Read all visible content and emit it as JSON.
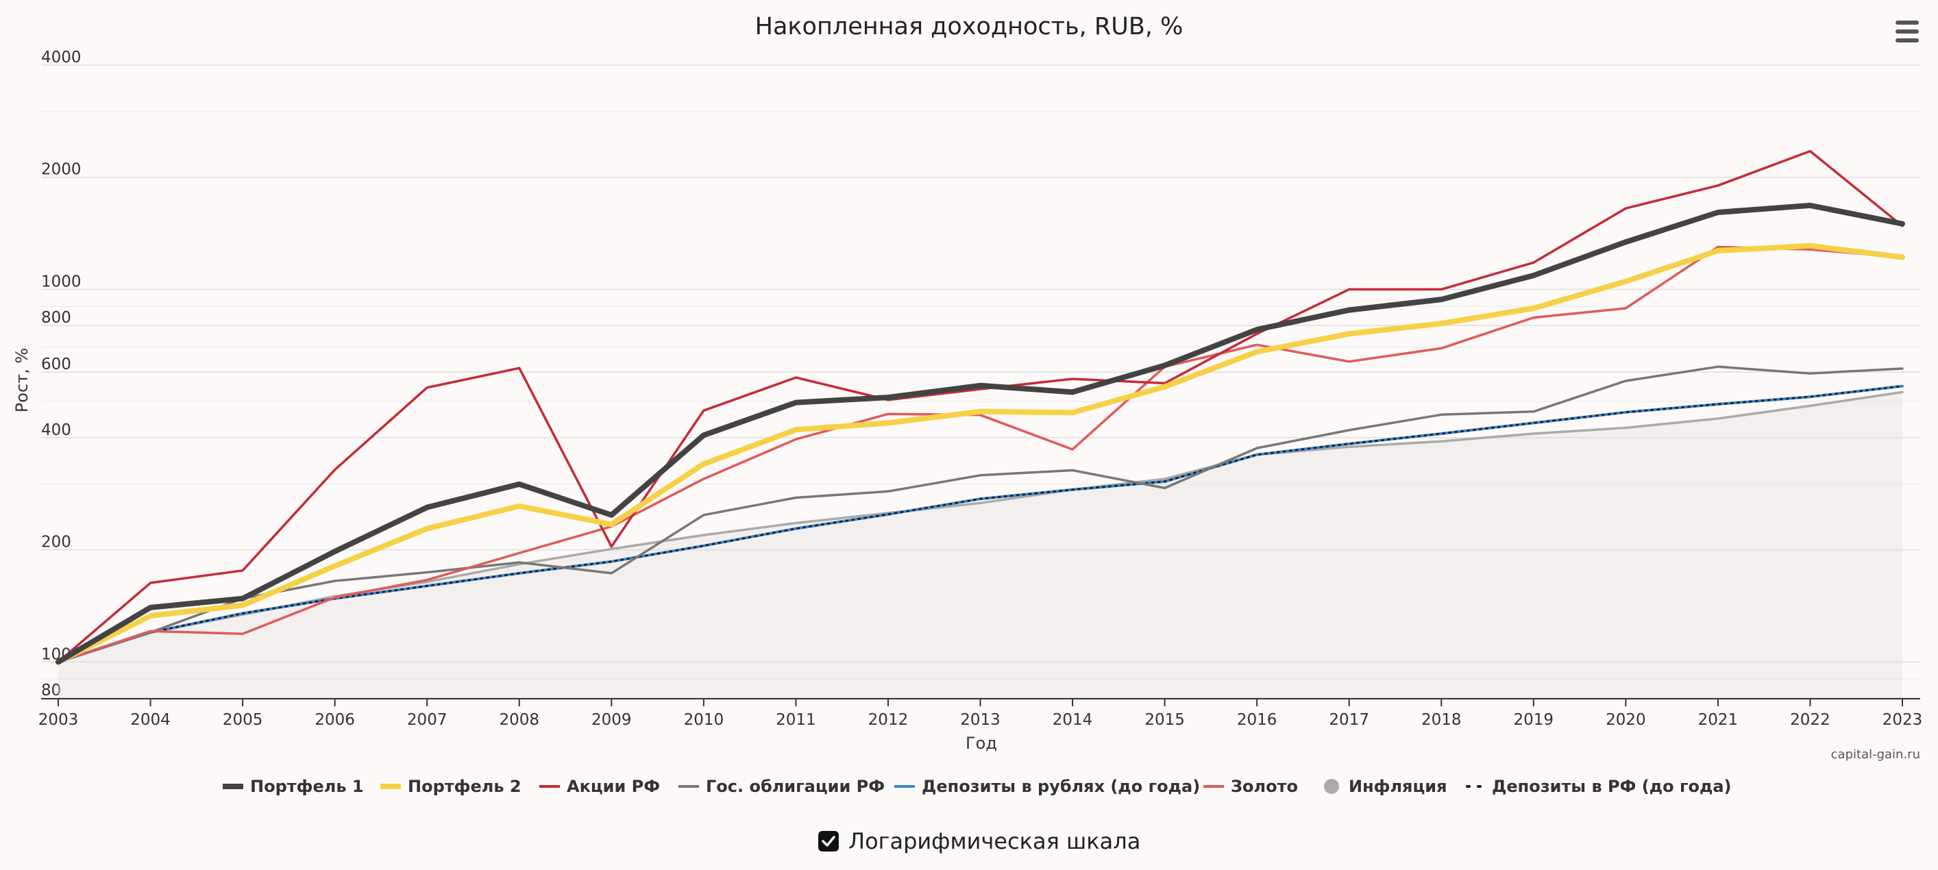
{
  "chart_data": {
    "type": "line",
    "title": "Накопленная доходность, RUB, %",
    "xlabel": "Год",
    "ylabel": "Рост, %",
    "yscale": "log",
    "ylim": [
      80,
      4000
    ],
    "yticks": [
      "4000",
      "2000",
      "1000",
      "800",
      "600",
      "400",
      "200",
      "100",
      "80"
    ],
    "x": [
      "2003",
      "2004",
      "2005",
      "2006",
      "2007",
      "2008",
      "2009",
      "2010",
      "2011",
      "2012",
      "2013",
      "2014",
      "2015",
      "2016",
      "2017",
      "2018",
      "2019",
      "2020",
      "2021",
      "2022",
      "2023"
    ],
    "grid": true,
    "legend_position": "bottom",
    "series": [
      {
        "name": "Портфель 1",
        "color": "#434343",
        "values": [
          100,
          140,
          148,
          198,
          260,
          300,
          248,
          406,
          497,
          513,
          552,
          530,
          625,
          780,
          880,
          940,
          1090,
          1340,
          1610,
          1680,
          1500
        ]
      },
      {
        "name": "Портфель 2",
        "color": "#f6d147",
        "values": [
          100,
          133,
          142,
          181,
          228,
          262,
          234,
          340,
          420,
          438,
          470,
          467,
          548,
          680,
          760,
          810,
          890,
          1050,
          1270,
          1310,
          1220
        ]
      },
      {
        "name": "Акции РФ",
        "color": "#c62a3a",
        "values": [
          100,
          163,
          176,
          328,
          545,
          615,
          204,
          473,
          580,
          505,
          540,
          575,
          560,
          760,
          1000,
          1000,
          1180,
          1650,
          1900,
          2350,
          1480
        ]
      },
      {
        "name": "Гос. облигации РФ",
        "color": "#777777",
        "values": [
          100,
          120,
          148,
          165,
          174,
          185,
          173,
          248,
          276,
          287,
          317,
          327,
          293,
          375,
          419,
          461,
          470,
          568,
          620,
          595,
          613
        ]
      },
      {
        "name": "Депозиты в рублях (до года)",
        "color": "#3a87d0",
        "values": [
          100,
          120,
          135,
          148,
          160,
          173,
          186,
          205,
          228,
          249,
          274,
          290,
          305,
          360,
          385,
          410,
          438,
          468,
          492,
          515,
          550
        ]
      },
      {
        "name": "Золото",
        "color": "#e05a5a",
        "values": [
          100,
          121,
          119,
          149,
          166,
          196,
          231,
          310,
          396,
          463,
          460,
          372,
          620,
          710,
          640,
          695,
          840,
          890,
          1300,
          1280,
          1220
        ]
      },
      {
        "name": "Инфляция",
        "color": "#aaaaaa",
        "values": [
          100,
          120,
          134,
          150,
          164,
          183,
          201,
          219,
          236,
          251,
          267,
          290,
          310,
          360,
          378,
          391,
          410,
          425,
          450,
          487,
          530
        ]
      },
      {
        "name": "Депозиты в РФ (до года)",
        "color": "#222222",
        "values": [
          100,
          120,
          135,
          148,
          160,
          173,
          186,
          205,
          228,
          249,
          274,
          290,
          305,
          360,
          385,
          410,
          438,
          468,
          492,
          515,
          550
        ]
      }
    ]
  },
  "credits": "capital-gain.ru",
  "log_scale_label": "Логарифмическая шкала",
  "log_scale_checked": true
}
